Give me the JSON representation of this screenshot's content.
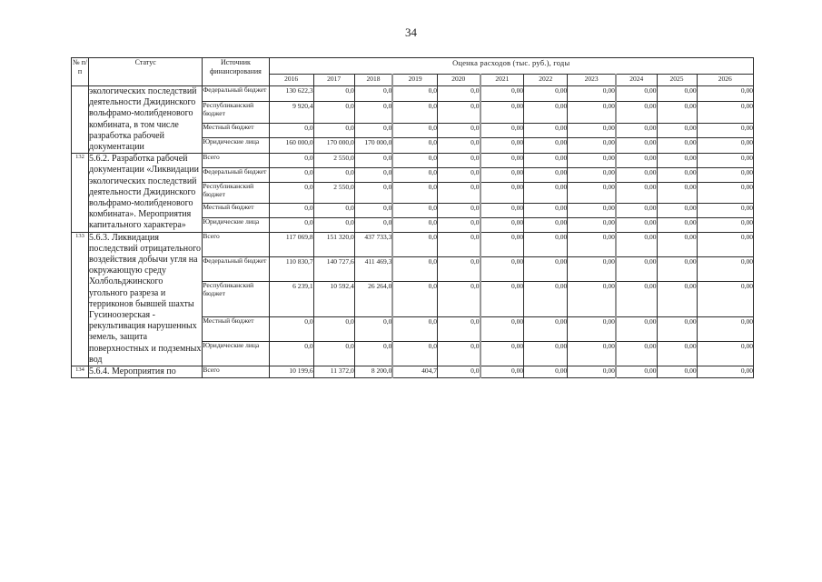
{
  "page": {
    "number": "34"
  },
  "table": {
    "title": "Оценка расходов  (тыс. руб.), годы",
    "col_headers": {
      "num": "№ п/п",
      "status": "Статус",
      "source": "Источник финансирования"
    },
    "years": [
      "2016",
      "2017",
      "2018",
      "2019",
      "2020",
      "2021",
      "2022",
      "2023",
      "2024",
      "2025",
      "2026"
    ],
    "sections": [
      {
        "num": "",
        "status": "экологических последствий деятельности Джидинского вольфрамо-молибденового комбината, в том числе разработка рабочей документации",
        "rows": [
          {
            "source": "Федеральный бюджет",
            "values": [
              "130 622,3",
              "0,0",
              "0,0",
              "0,0",
              "0,0",
              "0,00",
              "0,00",
              "0,00",
              "0,00",
              "0,00",
              "0,00"
            ]
          },
          {
            "source": "Республиканский бюджет",
            "values": [
              "9 920,4",
              "0,0",
              "0,0",
              "0,0",
              "0,0",
              "0,00",
              "0,00",
              "0,00",
              "0,00",
              "0,00",
              "0,00"
            ]
          },
          {
            "source": "Местный бюджет",
            "values": [
              "0,0",
              "0,0",
              "0,0",
              "0,0",
              "0,0",
              "0,00",
              "0,00",
              "0,00",
              "0,00",
              "0,00",
              "0,00"
            ]
          },
          {
            "source": "Юридические лица",
            "values": [
              "160 000,0",
              "170 000,0",
              "170 000,0",
              "0,0",
              "0,0",
              "0,00",
              "0,00",
              "0,00",
              "0,00",
              "0,00",
              "0,00"
            ]
          }
        ]
      },
      {
        "num": "132",
        "status": "5.6.2. Разработка рабочей документации «Ликвидации экологических последствий деятельности Джидинского вольфрамо-молибденового комбината». Мероприятия капитального характера»",
        "rows": [
          {
            "source": "Всего",
            "values": [
              "0,0",
              "2 550,0",
              "0,0",
              "0,0",
              "0,0",
              "0,00",
              "0,00",
              "0,00",
              "0,00",
              "0,00",
              "0,00"
            ]
          },
          {
            "source": "Федеральный бюджет",
            "values": [
              "0,0",
              "0,0",
              "0,0",
              "0,0",
              "0,0",
              "0,00",
              "0,00",
              "0,00",
              "0,00",
              "0,00",
              "0,00"
            ]
          },
          {
            "source": "Республиканский бюджет",
            "values": [
              "0,0",
              "2 550,0",
              "0,0",
              "0,0",
              "0,0",
              "0,00",
              "0,00",
              "0,00",
              "0,00",
              "0,00",
              "0,00"
            ]
          },
          {
            "source": "Местный бюджет",
            "values": [
              "0,0",
              "0,0",
              "0,0",
              "0,0",
              "0,0",
              "0,00",
              "0,00",
              "0,00",
              "0,00",
              "0,00",
              "0,00"
            ]
          },
          {
            "source": "Юридические лица",
            "values": [
              "0,0",
              "0,0",
              "0,0",
              "0,0",
              "0,0",
              "0,00",
              "0,00",
              "0,00",
              "0,00",
              "0,00",
              "0,00"
            ]
          }
        ]
      },
      {
        "num": "133",
        "status": "5.6.3. Ликвидация последствий отрицательного воздействия добычи угля на окружающую среду Холбольджинского угольного разреза и терриконов бывшей шахты Гусиноозерская - рекультивация нарушенных земель, защита поверхностных и подземных вод",
        "rows": [
          {
            "source": "Всего",
            "values": [
              "117 069,8",
              "151 320,0",
              "437 733,3",
              "0,0",
              "0,0",
              "0,00",
              "0,00",
              "0,00",
              "0,00",
              "0,00",
              "0,00"
            ]
          },
          {
            "source": "Федеральный бюджет",
            "values": [
              "110 830,7",
              "140 727,6",
              "411 469,3",
              "0,0",
              "0,0",
              "0,00",
              "0,00",
              "0,00",
              "0,00",
              "0,00",
              "0,00"
            ]
          },
          {
            "source": "Республиканский бюджет",
            "values": [
              "6 239,1",
              "10 592,4",
              "26 264,0",
              "0,0",
              "0,0",
              "0,00",
              "0,00",
              "0,00",
              "0,00",
              "0,00",
              "0,00"
            ]
          },
          {
            "source": "Местный бюджет",
            "values": [
              "0,0",
              "0,0",
              "0,0",
              "0,0",
              "0,0",
              "0,00",
              "0,00",
              "0,00",
              "0,00",
              "0,00",
              "0,00"
            ]
          },
          {
            "source": "Юридические лица",
            "values": [
              "0,0",
              "0,0",
              "0,0",
              "0,0",
              "0,0",
              "0,00",
              "0,00",
              "0,00",
              "0,00",
              "0,00",
              "0,00"
            ]
          }
        ]
      },
      {
        "num": "134",
        "status": "5.6.4. Мероприятия по",
        "rows": [
          {
            "source": "Всего",
            "values": [
              "10 199,6",
              "11 372,0",
              "8 200,0",
              "404,7",
              "0,0",
              "0,00",
              "0,00",
              "0,00",
              "0,00",
              "0,00",
              "0,00"
            ]
          }
        ]
      }
    ]
  }
}
